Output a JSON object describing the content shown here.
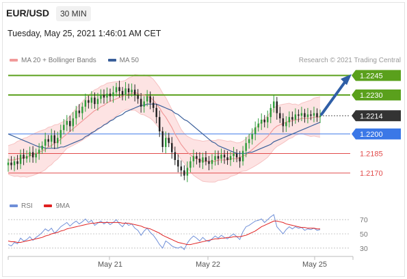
{
  "header": {
    "symbol": "EUR/USD",
    "timeframe": "30 MIN",
    "datetime": "Tuesday, May 25, 2021 1:46:01 AM CET",
    "credit": "Research © 2021 Trading Central"
  },
  "legend": {
    "price": [
      {
        "label": "MA 20 + Bollinger Bands",
        "color": "#f19a9a"
      },
      {
        "label": "MA 50",
        "color": "#3a5f9a"
      }
    ],
    "rsi": [
      {
        "label": "RSI",
        "color": "#6f8fd8"
      },
      {
        "label": "9MA",
        "color": "#e02020"
      }
    ]
  },
  "colors": {
    "resistance": "#5aa01c",
    "pivot": "#3b78e7",
    "support": "#e24b4b",
    "current": "#333333",
    "arrow": "#2f5fa7",
    "candle_up": "#2e9d3a",
    "candle_down": "#222222",
    "band_fill": "#fde3e3"
  },
  "chart_data": {
    "type": "candlestick",
    "ylim": [
      1.216,
      1.2252
    ],
    "x_labels": [
      "May 21",
      "May 22",
      "May 25"
    ],
    "levels": [
      {
        "value": 1.2245,
        "label": "1.2245",
        "kind": "resistance"
      },
      {
        "value": 1.223,
        "label": "1.2230",
        "kind": "resistance"
      },
      {
        "value": 1.2214,
        "label": "1.2214",
        "kind": "current"
      },
      {
        "value": 1.22,
        "label": "1.2200",
        "kind": "pivot"
      },
      {
        "value": 1.2185,
        "label": "1.2185",
        "kind": "support"
      },
      {
        "value": 1.217,
        "label": "1.2170",
        "kind": "support"
      }
    ],
    "close": [
      1.2178,
      1.2176,
      1.2179,
      1.2177,
      1.2184,
      1.2181,
      1.2183,
      1.2186,
      1.2182,
      1.2185,
      1.2188,
      1.2191,
      1.2196,
      1.2194,
      1.2199,
      1.2193,
      1.2197,
      1.2203,
      1.2207,
      1.221,
      1.2206,
      1.2212,
      1.2218,
      1.2216,
      1.2221,
      1.2226,
      1.2224,
      1.2228,
      1.2223,
      1.2227,
      1.223,
      1.2228,
      1.2231,
      1.2229,
      1.2232,
      1.2236,
      1.2233,
      1.223,
      1.2235,
      1.2232,
      1.2234,
      1.223,
      1.2227,
      1.2221,
      1.2225,
      1.2229,
      1.2224,
      1.222,
      1.2213,
      1.2202,
      1.219,
      1.2197,
      1.2193,
      1.2186,
      1.218,
      1.2175,
      1.2172,
      1.2168,
      1.2174,
      1.2179,
      1.2183,
      1.2181,
      1.2178,
      1.2182,
      1.2179,
      1.2177,
      1.218,
      1.2183,
      1.2181,
      1.2184,
      1.2182,
      1.218,
      1.2183,
      1.2185,
      1.2182,
      1.2179,
      1.2187,
      1.2193,
      1.2196,
      1.22,
      1.2205,
      1.2208,
      1.2211,
      1.2209,
      1.2213,
      1.222,
      1.2225,
      1.2216,
      1.2212,
      1.2206,
      1.2209,
      1.2213,
      1.2211,
      1.2215,
      1.2214,
      1.2216,
      1.2213,
      1.2215,
      1.2214,
      1.2216,
      1.2213,
      1.2214
    ],
    "ma20": [
      1.218,
      1.218,
      1.218,
      1.2181,
      1.2181,
      1.2182,
      1.2182,
      1.2183,
      1.2184,
      1.2185,
      1.2186,
      1.2187,
      1.2188,
      1.219,
      1.2191,
      1.2193,
      1.2194,
      1.2196,
      1.2198,
      1.22,
      1.2202,
      1.2204,
      1.2206,
      1.2208,
      1.221,
      1.2212,
      1.2214,
      1.2216,
      1.2218,
      1.2219,
      1.2221,
      1.2222,
      1.2224,
      1.2225,
      1.2226,
      1.2227,
      1.2228,
      1.2229,
      1.223,
      1.2231,
      1.2231,
      1.2232,
      1.2231,
      1.223,
      1.223,
      1.2229,
      1.2228,
      1.2226,
      1.2223,
      1.222,
      1.2216,
      1.2213,
      1.2209,
      1.2205,
      1.22,
      1.2196,
      1.2192,
      1.2189,
      1.2186,
      1.2184,
      1.2182,
      1.2181,
      1.218,
      1.2179,
      1.2179,
      1.2179,
      1.2179,
      1.2179,
      1.218,
      1.218,
      1.218,
      1.218,
      1.2181,
      1.2181,
      1.2181,
      1.2182,
      1.2183,
      1.2184,
      1.2186,
      1.2188,
      1.219,
      1.2192,
      1.2194,
      1.2196,
      1.2198,
      1.2201,
      1.2204,
      1.2206,
      1.2207,
      1.2208,
      1.2209,
      1.221,
      1.221,
      1.2211,
      1.2211,
      1.2212,
      1.2212,
      1.2212,
      1.2212,
      1.2213,
      1.2213,
      1.2213
    ],
    "ma50": [
      1.22,
      1.2199,
      1.2198,
      1.2197,
      1.2196,
      1.2195,
      1.2194,
      1.2193,
      1.2192,
      1.2191,
      1.219,
      1.219,
      1.2189,
      1.2189,
      1.2189,
      1.2189,
      1.2189,
      1.219,
      1.219,
      1.2191,
      1.2192,
      1.2193,
      1.2194,
      1.2195,
      1.2196,
      1.2198,
      1.2199,
      1.2201,
      1.2202,
      1.2204,
      1.2205,
      1.2207,
      1.2208,
      1.221,
      1.2211,
      1.2213,
      1.2214,
      1.2215,
      1.2217,
      1.2218,
      1.2219,
      1.222,
      1.2221,
      1.2222,
      1.2222,
      1.2223,
      1.2223,
      1.2223,
      1.2223,
      1.2222,
      1.2221,
      1.222,
      1.2219,
      1.2218,
      1.2216,
      1.2215,
      1.2213,
      1.2211,
      1.221,
      1.2208,
      1.2206,
      1.2204,
      1.2202,
      1.22,
      1.2198,
      1.2196,
      1.2194,
      1.2193,
      1.2191,
      1.219,
      1.2189,
      1.2188,
      1.2187,
      1.2186,
      1.2185,
      1.2185,
      1.2185,
      1.2185,
      1.2186,
      1.2186,
      1.2187,
      1.2188,
      1.2189,
      1.219,
      1.2191,
      1.2192,
      1.2194,
      1.2195,
      1.2196,
      1.2197,
      1.2198,
      1.2199,
      1.22,
      1.2201,
      1.2202,
      1.2203,
      1.2204,
      1.2205,
      1.2206,
      1.2207,
      1.2208,
      1.2209
    ],
    "projection": {
      "from": 1.2214,
      "to": 1.2245
    },
    "rsi": {
      "ylim": [
        25,
        75
      ],
      "ticks": [
        70,
        50,
        30
      ],
      "rsi": [
        35,
        33,
        38,
        36,
        44,
        40,
        42,
        46,
        41,
        45,
        48,
        52,
        57,
        54,
        58,
        51,
        55,
        60,
        63,
        66,
        61,
        65,
        68,
        64,
        67,
        71,
        66,
        69,
        62,
        65,
        68,
        64,
        67,
        63,
        66,
        70,
        64,
        60,
        66,
        62,
        64,
        58,
        55,
        48,
        54,
        58,
        52,
        48,
        42,
        35,
        30,
        40,
        37,
        33,
        31,
        30,
        32,
        28,
        37,
        43,
        47,
        44,
        40,
        45,
        41,
        39,
        43,
        47,
        44,
        48,
        45,
        43,
        47,
        50,
        46,
        42,
        53,
        60,
        62,
        65,
        68,
        69,
        71,
        66,
        70,
        74,
        77,
        60,
        55,
        50,
        56,
        60,
        57,
        60,
        58,
        59,
        55,
        57,
        56,
        58,
        55,
        56
      ],
      "ma9": [
        40,
        39,
        39,
        38,
        38,
        39,
        40,
        41,
        42,
        43,
        44,
        45,
        47,
        48,
        50,
        51,
        52,
        54,
        55,
        57,
        58,
        59,
        60,
        61,
        62,
        63,
        64,
        65,
        65,
        66,
        66,
        66,
        66,
        66,
        66,
        66,
        66,
        65,
        65,
        65,
        64,
        63,
        62,
        61,
        59,
        58,
        57,
        55,
        53,
        51,
        48,
        46,
        44,
        42,
        40,
        38,
        37,
        36,
        35,
        35,
        36,
        37,
        38,
        39,
        40,
        41,
        42,
        43,
        43,
        44,
        44,
        45,
        45,
        46,
        46,
        46,
        47,
        48,
        50,
        52,
        54,
        57,
        60,
        62,
        64,
        66,
        68,
        68,
        67,
        66,
        64,
        63,
        62,
        61,
        60,
        59,
        59,
        58,
        58,
        58,
        57,
        57
      ]
    }
  }
}
